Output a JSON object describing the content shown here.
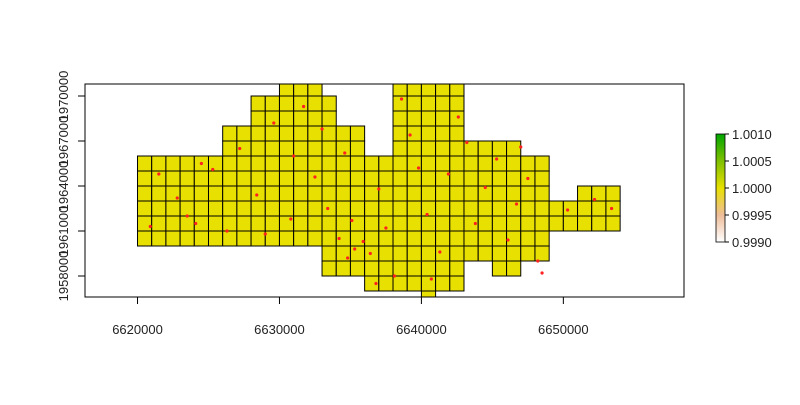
{
  "chart_data": {
    "type": "raster",
    "xlim": [
      6616300,
      6658500
    ],
    "ylim": [
      1956600,
      1970800
    ],
    "xticks": [
      6620000,
      6630000,
      6640000,
      6650000
    ],
    "yticks": [
      1958000,
      1961000,
      1964000,
      1967000,
      1970000
    ],
    "cell_color": "#e8e000",
    "point_color": "#ff2020",
    "blocks": [
      {
        "x": [
          6620000,
          6626000
        ],
        "y": [
          1960000,
          1966000
        ],
        "value": 1
      },
      {
        "x": [
          6626000,
          6628000
        ],
        "y": [
          1960000,
          1968000
        ],
        "value": 1
      },
      {
        "x": [
          6628000,
          6630000
        ],
        "y": [
          1960000,
          1970000
        ],
        "value": 1
      },
      {
        "x": [
          6630000,
          6633000
        ],
        "y": [
          1960000,
          1971000
        ],
        "value": 1
      },
      {
        "x": [
          6633000,
          6634000
        ],
        "y": [
          1958000,
          1970000
        ],
        "value": 1
      },
      {
        "x": [
          6634000,
          6636000
        ],
        "y": [
          1958000,
          1968000
        ],
        "value": 1
      },
      {
        "x": [
          6636000,
          6638000
        ],
        "y": [
          1957000,
          1966000
        ],
        "value": 1
      },
      {
        "x": [
          6638000,
          6640000
        ],
        "y": [
          1957000,
          1971000
        ],
        "value": 1
      },
      {
        "x": [
          6640000,
          6641000
        ],
        "y": [
          1956000,
          1971000
        ],
        "value": 1
      },
      {
        "x": [
          6641000,
          6643000
        ],
        "y": [
          1957000,
          1971000
        ],
        "value": 1
      },
      {
        "x": [
          6643000,
          6645000
        ],
        "y": [
          1959000,
          1967000
        ],
        "value": 1
      },
      {
        "x": [
          6645000,
          6647000
        ],
        "y": [
          1958000,
          1967000
        ],
        "value": 1
      },
      {
        "x": [
          6647000,
          6649000
        ],
        "y": [
          1959000,
          1966000
        ],
        "value": 1
      },
      {
        "x": [
          6649000,
          6651000
        ],
        "y": [
          1961000,
          1963000
        ],
        "value": 1
      },
      {
        "x": [
          6651000,
          6654000
        ],
        "y": [
          1961000,
          1964000
        ],
        "value": 1
      }
    ],
    "points": {
      "x": [
        6621500,
        6622800,
        6624100,
        6625300,
        6623500,
        6627200,
        6628400,
        6629600,
        6630800,
        6631700,
        6632500,
        6633400,
        6634200,
        6634800,
        6635300,
        6635900,
        6636400,
        6635100,
        6634600,
        6637000,
        6637500,
        6638600,
        6639200,
        6639800,
        6640400,
        6641300,
        6641900,
        6642600,
        6643800,
        6644500,
        6645300,
        6646100,
        6646700,
        6647500,
        6648200,
        6648500,
        6650300,
        6652200,
        6653400,
        6626300,
        6620900,
        6638100,
        6640700,
        6636800,
        6643200,
        6647000,
        6631000,
        6633000,
        6629000,
        6624500
      ],
      "y": [
        1964800,
        1963200,
        1961500,
        1965100,
        1962000,
        1966500,
        1963400,
        1968200,
        1961800,
        1969300,
        1964600,
        1962500,
        1960500,
        1959200,
        1959800,
        1960300,
        1959500,
        1961700,
        1966200,
        1963800,
        1961200,
        1969800,
        1967400,
        1965200,
        1962100,
        1959600,
        1964800,
        1968600,
        1961500,
        1963900,
        1965800,
        1960400,
        1962800,
        1964500,
        1959000,
        1958200,
        1962400,
        1963100,
        1962500,
        1961000,
        1961300,
        1958000,
        1957800,
        1957500,
        1966900,
        1966600,
        1966000,
        1967800,
        1960800,
        1965500
      ]
    },
    "colorbar": {
      "lim": [
        0.999,
        1.001
      ],
      "colors": [
        "#ffffff",
        "#eebd99",
        "#e8e000",
        "#7fc000",
        "#00a600"
      ],
      "ticks": [
        {
          "value": 0.999,
          "label": "0.9990"
        },
        {
          "value": 0.9995,
          "label": "0.9995"
        },
        {
          "value": 1,
          "label": "1.0000"
        },
        {
          "value": 1.0005,
          "label": "1.0005"
        },
        {
          "value": 1.001,
          "label": "1.0010"
        }
      ]
    }
  }
}
